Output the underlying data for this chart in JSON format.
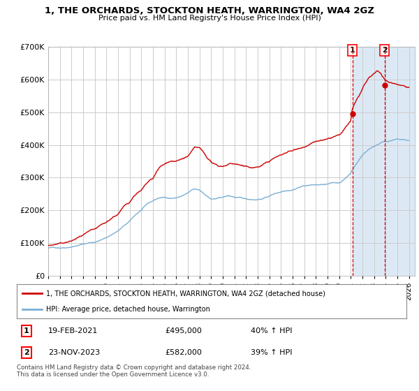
{
  "title": "1, THE ORCHARDS, STOCKTON HEATH, WARRINGTON, WA4 2GZ",
  "subtitle": "Price paid vs. HM Land Registry's House Price Index (HPI)",
  "legend_line1": "1, THE ORCHARDS, STOCKTON HEATH, WARRINGTON, WA4 2GZ (detached house)",
  "legend_line2": "HPI: Average price, detached house, Warrington",
  "footer": "Contains HM Land Registry data © Crown copyright and database right 2024.\nThis data is licensed under the Open Government Licence v3.0.",
  "transaction1": {
    "label": "1",
    "date": "19-FEB-2021",
    "price": "£495,000",
    "hpi": "40% ↑ HPI",
    "year": 2021.13
  },
  "transaction2": {
    "label": "2",
    "date": "23-NOV-2023",
    "price": "£582,000",
    "hpi": "39% ↑ HPI",
    "year": 2023.9
  },
  "red_color": "#cc0000",
  "blue_color": "#7bafd4",
  "shade_color": "#dce9f5",
  "grid_color": "#cccccc",
  "background_color": "#ffffff",
  "ylim": [
    0,
    700000
  ],
  "xlim": [
    1995.0,
    2026.5
  ],
  "yticks": [
    0,
    100000,
    200000,
    300000,
    400000,
    500000,
    600000,
    700000
  ],
  "xticks": [
    1995,
    1996,
    1997,
    1998,
    1999,
    2000,
    2001,
    2002,
    2003,
    2004,
    2005,
    2006,
    2007,
    2008,
    2009,
    2010,
    2011,
    2012,
    2013,
    2014,
    2015,
    2016,
    2017,
    2018,
    2019,
    2020,
    2021,
    2022,
    2023,
    2024,
    2025,
    2026
  ],
  "t1_price": 495000,
  "t2_price": 582000
}
